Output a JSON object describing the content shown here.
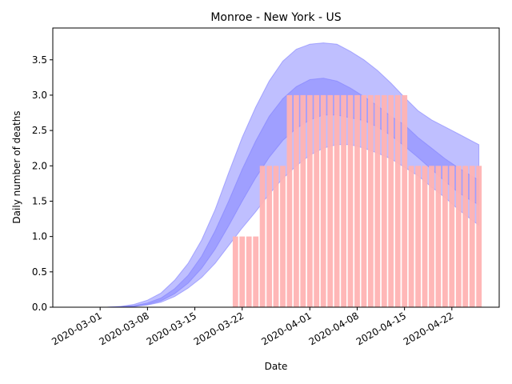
{
  "chart_data": {
    "type": "bar",
    "title": "Monroe - New York - US",
    "xlabel": "Date",
    "ylabel": "Daily number of deaths",
    "x_range": [
      "2020-02-23",
      "2020-04-29"
    ],
    "ylim": [
      0,
      3.95
    ],
    "x_ticks": [
      "2020-03-01",
      "2020-03-08",
      "2020-03-15",
      "2020-03-22",
      "2020-04-01",
      "2020-04-08",
      "2020-04-15",
      "2020-04-22"
    ],
    "y_ticks": [
      "0.0",
      "0.5",
      "1.0",
      "1.5",
      "2.0",
      "2.5",
      "3.0",
      "3.5"
    ],
    "grid": false,
    "bar_color": "#ffb3b3",
    "band_color": "#8080ff",
    "bars": [
      {
        "date": "2020-03-21",
        "value": 1
      },
      {
        "date": "2020-03-22",
        "value": 1
      },
      {
        "date": "2020-03-23",
        "value": 1
      },
      {
        "date": "2020-03-24",
        "value": 1
      },
      {
        "date": "2020-03-25",
        "value": 2
      },
      {
        "date": "2020-03-26",
        "value": 2
      },
      {
        "date": "2020-03-27",
        "value": 2
      },
      {
        "date": "2020-03-28",
        "value": 2
      },
      {
        "date": "2020-03-29",
        "value": 3
      },
      {
        "date": "2020-03-30",
        "value": 3
      },
      {
        "date": "2020-03-31",
        "value": 3
      },
      {
        "date": "2020-04-01",
        "value": 3
      },
      {
        "date": "2020-04-02",
        "value": 3
      },
      {
        "date": "2020-04-03",
        "value": 3
      },
      {
        "date": "2020-04-04",
        "value": 3
      },
      {
        "date": "2020-04-05",
        "value": 3
      },
      {
        "date": "2020-04-06",
        "value": 3
      },
      {
        "date": "2020-04-07",
        "value": 3
      },
      {
        "date": "2020-04-08",
        "value": 3
      },
      {
        "date": "2020-04-09",
        "value": 3
      },
      {
        "date": "2020-04-10",
        "value": 3
      },
      {
        "date": "2020-04-11",
        "value": 3
      },
      {
        "date": "2020-04-12",
        "value": 3
      },
      {
        "date": "2020-04-13",
        "value": 3
      },
      {
        "date": "2020-04-14",
        "value": 3
      },
      {
        "date": "2020-04-15",
        "value": 3
      },
      {
        "date": "2020-04-16",
        "value": 2
      },
      {
        "date": "2020-04-17",
        "value": 2
      },
      {
        "date": "2020-04-18",
        "value": 2
      },
      {
        "date": "2020-04-19",
        "value": 2
      },
      {
        "date": "2020-04-20",
        "value": 2
      },
      {
        "date": "2020-04-21",
        "value": 2
      },
      {
        "date": "2020-04-22",
        "value": 2
      },
      {
        "date": "2020-04-23",
        "value": 2
      },
      {
        "date": "2020-04-24",
        "value": 2
      },
      {
        "date": "2020-04-25",
        "value": 2
      },
      {
        "date": "2020-04-26",
        "value": 2
      }
    ],
    "bands": [
      {
        "x": [
          "2020-02-29",
          "2020-03-02",
          "2020-03-04",
          "2020-03-06",
          "2020-03-08",
          "2020-03-10",
          "2020-03-12",
          "2020-03-14",
          "2020-03-16",
          "2020-03-18",
          "2020-03-20",
          "2020-03-22",
          "2020-03-24",
          "2020-03-26",
          "2020-03-28",
          "2020-03-30",
          "2020-04-01",
          "2020-04-03",
          "2020-04-05",
          "2020-04-07",
          "2020-04-09",
          "2020-04-11",
          "2020-04-13",
          "2020-04-15",
          "2020-04-17",
          "2020-04-19",
          "2020-04-21",
          "2020-04-23",
          "2020-04-25",
          "2020-04-26"
        ],
        "upper": [
          0.0,
          0.0,
          0.01,
          0.04,
          0.1,
          0.2,
          0.38,
          0.62,
          0.95,
          1.38,
          1.9,
          2.4,
          2.83,
          3.2,
          3.48,
          3.65,
          3.72,
          3.74,
          3.72,
          3.62,
          3.5,
          3.35,
          3.17,
          2.97,
          2.78,
          2.65,
          2.55,
          2.45,
          2.35,
          2.3
        ],
        "lower": [
          0.0,
          0.0,
          0.0,
          0.01,
          0.03,
          0.07,
          0.15,
          0.27,
          0.42,
          0.62,
          0.87,
          1.12,
          1.35,
          1.6,
          1.82,
          2.0,
          2.15,
          2.25,
          2.3,
          2.3,
          2.25,
          2.18,
          2.1,
          1.98,
          1.86,
          1.7,
          1.55,
          1.38,
          1.23,
          1.16
        ]
      },
      {
        "x": [
          "2020-02-29",
          "2020-03-02",
          "2020-03-04",
          "2020-03-06",
          "2020-03-08",
          "2020-03-10",
          "2020-03-12",
          "2020-03-14",
          "2020-03-16",
          "2020-03-18",
          "2020-03-20",
          "2020-03-22",
          "2020-03-24",
          "2020-03-26",
          "2020-03-28",
          "2020-03-30",
          "2020-04-01",
          "2020-04-03",
          "2020-04-05",
          "2020-04-07",
          "2020-04-09",
          "2020-04-11",
          "2020-04-13",
          "2020-04-15",
          "2020-04-17",
          "2020-04-19",
          "2020-04-21",
          "2020-04-23",
          "2020-04-25",
          "2020-04-26"
        ],
        "upper": [
          0.0,
          0.0,
          0.01,
          0.02,
          0.06,
          0.13,
          0.26,
          0.45,
          0.72,
          1.08,
          1.5,
          1.95,
          2.35,
          2.7,
          2.95,
          3.12,
          3.22,
          3.24,
          3.2,
          3.1,
          2.98,
          2.85,
          2.7,
          2.58,
          2.4,
          2.25,
          2.1,
          1.97,
          1.85,
          1.8
        ],
        "lower": [
          0.0,
          0.0,
          0.0,
          0.01,
          0.04,
          0.09,
          0.19,
          0.34,
          0.55,
          0.82,
          1.15,
          1.5,
          1.83,
          2.12,
          2.36,
          2.53,
          2.65,
          2.72,
          2.72,
          2.68,
          2.64,
          2.55,
          2.43,
          2.28,
          2.12,
          1.95,
          1.78,
          1.62,
          1.5,
          1.45
        ]
      }
    ]
  }
}
